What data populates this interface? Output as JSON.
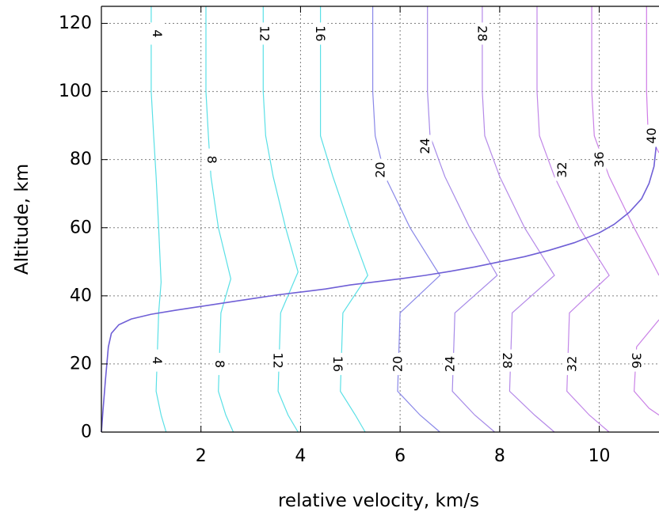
{
  "chart_data": {
    "type": "line",
    "title": "",
    "xlabel": "relative velocity, km/s",
    "ylabel": "Altitude, km",
    "xlim": [
      0,
      11.2
    ],
    "ylim": [
      0,
      125
    ],
    "xticks": [
      2,
      4,
      6,
      8,
      10
    ],
    "yticks": [
      0,
      20,
      40,
      60,
      80,
      100,
      120
    ],
    "grid": true,
    "legend": "none",
    "colors": {
      "low": "#5ae0e6",
      "high": "#d07be6",
      "curve": "#6f5fd6",
      "axis": "#000000",
      "grid": "#808080"
    },
    "curve": {
      "name": "",
      "x": [
        0.0,
        0.03,
        0.08,
        0.14,
        0.2,
        0.35,
        0.6,
        1.0,
        1.5,
        2.0,
        2.5,
        3.0,
        3.5,
        4.0,
        4.5,
        5.0,
        5.5,
        6.0,
        6.5,
        7.0,
        7.5,
        8.0,
        8.5,
        9.0,
        9.5,
        10.0,
        10.3,
        10.6,
        10.85,
        11.0,
        11.1,
        11.15
      ],
      "y": [
        0,
        6,
        15,
        25,
        29,
        31.5,
        33.2,
        34.6,
        35.8,
        36.9,
        38.0,
        39.1,
        40.2,
        41.1,
        42.0,
        43.2,
        44.1,
        45.0,
        46.0,
        47.2,
        48.5,
        50.0,
        51.5,
        53.4,
        55.6,
        58.5,
        61.0,
        64.5,
        68.5,
        73.0,
        78.0,
        85.0
      ]
    },
    "contours": [
      {
        "label": "4",
        "color": "#5ae0e6",
        "labels_at": [
          {
            "text": "4",
            "x": 1.12,
            "y": 117,
            "rot": 90
          },
          {
            "text": "4",
            "x": 1.12,
            "y": 21,
            "rot": 90
          }
        ],
        "x": [
          1.0,
          1.0,
          1.05,
          1.1,
          1.15,
          1.2,
          1.15,
          1.1,
          1.2,
          1.3
        ],
        "y": [
          125,
          100,
          87,
          75,
          60,
          44,
          35,
          12,
          5,
          0
        ]
      },
      {
        "label": "8",
        "color": "#5ae0e6",
        "labels_at": [
          {
            "text": "8",
            "x": 2.22,
            "y": 80,
            "rot": 90
          },
          {
            "text": "8",
            "x": 2.38,
            "y": 20,
            "rot": 90
          }
        ],
        "x": [
          2.1,
          2.1,
          2.15,
          2.2,
          2.35,
          2.6,
          2.4,
          2.35,
          2.5,
          2.65
        ],
        "y": [
          125,
          100,
          87,
          75,
          60,
          45,
          35,
          12,
          5,
          0
        ]
      },
      {
        "label": "12",
        "color": "#5ae0e6",
        "labels_at": [
          {
            "text": "12",
            "x": 3.28,
            "y": 117,
            "rot": 90
          },
          {
            "text": "12",
            "x": 3.55,
            "y": 21,
            "rot": 90
          }
        ],
        "x": [
          3.25,
          3.25,
          3.3,
          3.45,
          3.7,
          3.95,
          3.6,
          3.55,
          3.75,
          3.95
        ],
        "y": [
          125,
          100,
          87,
          75,
          60,
          47,
          35,
          12,
          5,
          0
        ]
      },
      {
        "label": "16",
        "color": "#5ae0e6",
        "labels_at": [
          {
            "text": "16",
            "x": 4.4,
            "y": 117,
            "rot": 90
          },
          {
            "text": "16",
            "x": 4.75,
            "y": 20,
            "rot": 90
          }
        ],
        "x": [
          4.4,
          4.4,
          4.4,
          4.65,
          5.0,
          5.35,
          4.85,
          4.8,
          5.1,
          5.3
        ],
        "y": [
          125,
          100,
          87,
          75,
          60,
          46,
          35,
          12,
          5,
          0
        ]
      },
      {
        "label": "20",
        "color": "#8a88e8",
        "labels_at": [
          {
            "text": "20",
            "x": 5.6,
            "y": 77,
            "rot": -90
          },
          {
            "text": "20",
            "x": 5.95,
            "y": 20,
            "rot": -90
          }
        ],
        "x": [
          5.45,
          5.45,
          5.5,
          5.7,
          6.2,
          6.8,
          6.0,
          5.95,
          6.4,
          6.8
        ],
        "y": [
          125,
          100,
          87,
          75,
          60,
          46,
          35,
          12,
          5,
          0
        ]
      },
      {
        "label": "24",
        "color": "#a68ae8",
        "labels_at": [
          {
            "text": "24",
            "x": 6.5,
            "y": 84,
            "rot": -90
          },
          {
            "text": "24",
            "x": 7.0,
            "y": 20,
            "rot": -90
          }
        ],
        "x": [
          6.55,
          6.55,
          6.6,
          6.9,
          7.4,
          7.95,
          7.1,
          7.05,
          7.5,
          7.9
        ],
        "y": [
          125,
          100,
          87,
          75,
          60,
          46,
          35,
          12,
          5,
          0
        ]
      },
      {
        "label": "28",
        "color": "#b58ae8",
        "labels_at": [
          {
            "text": "28",
            "x": 7.65,
            "y": 117,
            "rot": 90
          },
          {
            "text": "28",
            "x": 8.15,
            "y": 21,
            "rot": 90
          }
        ],
        "x": [
          7.65,
          7.65,
          7.7,
          8.0,
          8.5,
          9.1,
          8.25,
          8.2,
          8.7,
          9.1
        ],
        "y": [
          125,
          100,
          87,
          75,
          60,
          46,
          35,
          12,
          5,
          0
        ]
      },
      {
        "label": "32",
        "color": "#c287e8",
        "labels_at": [
          {
            "text": "32",
            "x": 9.25,
            "y": 77,
            "rot": -90
          },
          {
            "text": "32",
            "x": 9.45,
            "y": 20,
            "rot": -90
          }
        ],
        "x": [
          8.75,
          8.75,
          8.8,
          9.1,
          9.6,
          10.2,
          9.4,
          9.35,
          9.8,
          10.2
        ],
        "y": [
          125,
          100,
          87,
          75,
          60,
          46,
          35,
          12,
          5,
          0
        ]
      },
      {
        "label": "36",
        "color": "#ca82e6",
        "labels_at": [
          {
            "text": "36",
            "x": 10.0,
            "y": 80,
            "rot": -90
          },
          {
            "text": "36",
            "x": 10.75,
            "y": 21,
            "rot": 90
          }
        ],
        "x": [
          9.85,
          9.85,
          9.9,
          10.2,
          10.7,
          11.2
        ],
        "y": [
          125,
          100,
          87,
          75,
          60,
          46
        ]
      },
      {
        "label": "36-lower",
        "color": "#ca82e6",
        "labels_at": [],
        "x": [
          11.2,
          10.75,
          10.7,
          11.0,
          11.2
        ],
        "y": [
          33,
          25,
          12,
          7,
          5
        ]
      },
      {
        "label": "40",
        "color": "#d07be6",
        "labels_at": [
          {
            "text": "40",
            "x": 11.05,
            "y": 87,
            "rot": -90
          }
        ],
        "x": [
          10.95,
          10.95,
          10.98,
          11.2
        ],
        "y": [
          125,
          100,
          88,
          82
        ]
      }
    ]
  }
}
